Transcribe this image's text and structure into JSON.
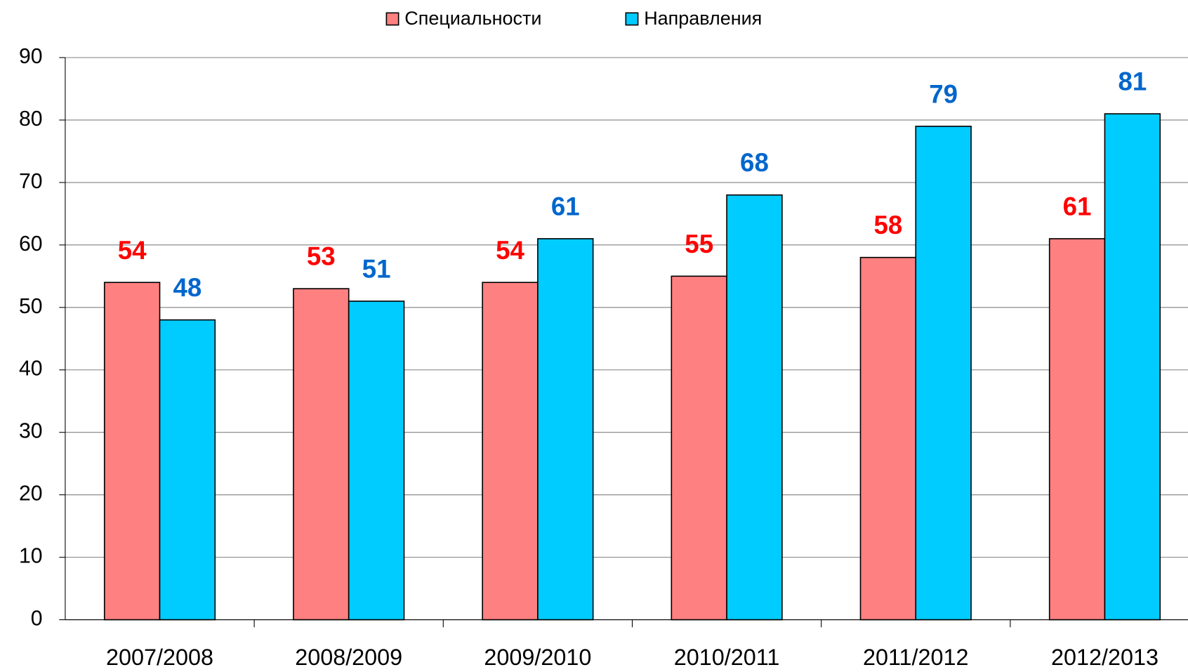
{
  "chart_data": {
    "type": "bar",
    "categories": [
      "2007/2008",
      "2008/2009",
      "2009/2010",
      "2010/2011",
      "2011/2012",
      "2012/2013"
    ],
    "series": [
      {
        "name": "Специальности",
        "color": "#ff8080",
        "label_color": "#ff0000",
        "values": [
          54,
          53,
          54,
          55,
          58,
          61
        ]
      },
      {
        "name": "Направления",
        "color": "#00ccff",
        "label_color": "#0066cc",
        "values": [
          48,
          51,
          61,
          68,
          79,
          81
        ]
      }
    ],
    "ylim": [
      0,
      90
    ],
    "yticks": [
      0,
      10,
      20,
      30,
      40,
      50,
      60,
      70,
      80,
      90
    ],
    "grid": true,
    "legend": "top"
  }
}
